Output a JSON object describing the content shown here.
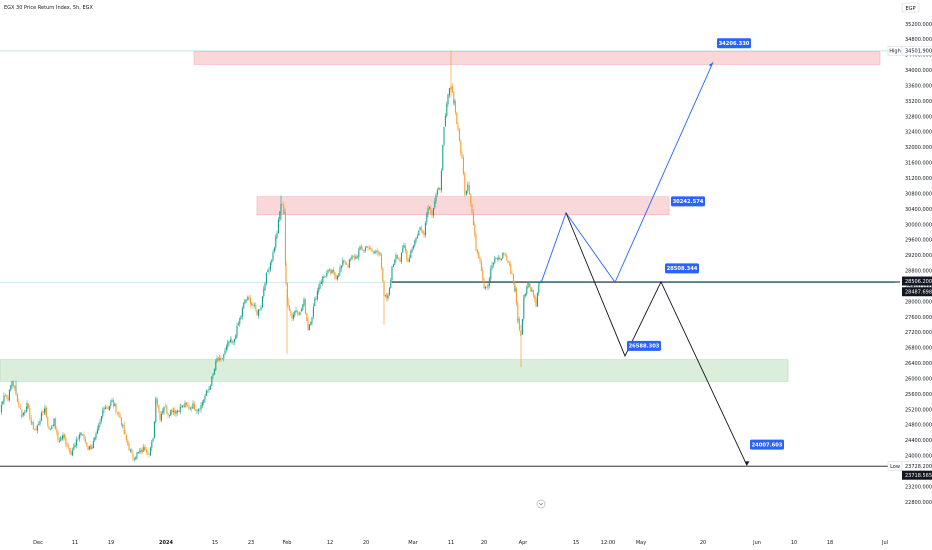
{
  "header": {
    "symbol_title": "EGX 30 Price Return Index, 5h, EGX",
    "currency": "EGP"
  },
  "colors": {
    "up": "#089981",
    "down": "#f7931a",
    "blue": "#2962ff",
    "black": "#131722",
    "supply_zone": "#f8c9cc",
    "demand_zone": "#cde8cf",
    "current_line": "#9fd8d4"
  },
  "chart_data": {
    "type": "candlestick",
    "title": "EGX 30 Price Return Index, 5h, EGX",
    "currency": "EGP",
    "y_axis": {
      "ticks": [
        35200,
        34800,
        34400,
        34000,
        33600,
        33200,
        32800,
        32400,
        32000,
        31600,
        31200,
        30800,
        30400,
        30000,
        29600,
        29200,
        28800,
        28400,
        28000,
        27600,
        27200,
        26800,
        26400,
        26000,
        25600,
        25200,
        24800,
        24400,
        24000,
        23600,
        23200,
        22800
      ],
      "tick_labels": [
        "35200.000",
        "34800.000",
        "34400.000",
        "34000.000",
        "33600.000",
        "33200.000",
        "32800.000",
        "32400.000",
        "32000.000",
        "31600.000",
        "31200.000",
        "30800.000",
        "30400.000",
        "30000.000",
        "29600.000",
        "29200.000",
        "28800.000",
        "28400.000",
        "28000.000",
        "27600.000",
        "27200.000",
        "26800.000",
        "26400.000",
        "26000.000",
        "25600.000",
        "25200.000",
        "24800.000",
        "24400.000",
        "24000.000",
        "23600.000",
        "23200.000",
        "22800.000"
      ],
      "range": [
        22700,
        35500
      ]
    },
    "x_axis": {
      "labels": [
        "Dec",
        "11",
        "19",
        "2024",
        "15",
        "23",
        "Feb",
        "12",
        "20",
        "Mar",
        "11",
        "20",
        "Apr",
        "15",
        "12:00",
        "May",
        "20",
        "Jun",
        "10",
        "18",
        "Jul"
      ]
    },
    "price_labels": [
      {
        "tag": "High",
        "value": "34501.900"
      },
      {
        "tag": "",
        "value": "28506.200"
      },
      {
        "tag": "",
        "value": "28487.698"
      },
      {
        "tag": "Low",
        "value": "23728.200"
      },
      {
        "tag": "",
        "value": "23718.565"
      }
    ],
    "annotations": [
      "34206.330",
      "30242.574",
      "28508.344",
      "26588.303",
      "24007.603"
    ],
    "zones": [
      {
        "type": "supply",
        "from": 34150,
        "to": 34480
      },
      {
        "type": "supply",
        "from": 30250,
        "to": 30720
      },
      {
        "type": "demand",
        "from": 25930,
        "to": 26490
      }
    ],
    "levels": {
      "high": 34501.9,
      "current": 28506.2,
      "low": 23728.2
    },
    "price_path": [
      [
        0,
        25150
      ],
      [
        4,
        25600
      ],
      [
        8,
        25500
      ],
      [
        12,
        25950
      ],
      [
        16,
        25600
      ],
      [
        19,
        25300
      ],
      [
        22,
        25050
      ],
      [
        27,
        25300
      ],
      [
        32,
        24800
      ],
      [
        36,
        24650
      ],
      [
        40,
        24950
      ],
      [
        45,
        25250
      ],
      [
        49,
        24650
      ],
      [
        54,
        24900
      ],
      [
        58,
        24400
      ],
      [
        63,
        24500
      ],
      [
        67,
        24300
      ],
      [
        71,
        24100
      ],
      [
        75,
        24250
      ],
      [
        80,
        24600
      ],
      [
        84,
        24450
      ],
      [
        88,
        24200
      ],
      [
        92,
        24250
      ],
      [
        96,
        24500
      ],
      [
        100,
        24850
      ],
      [
        104,
        25300
      ],
      [
        108,
        25250
      ],
      [
        112,
        25400
      ],
      [
        116,
        25200
      ],
      [
        120,
        25000
      ],
      [
        125,
        24500
      ],
      [
        129,
        24200
      ],
      [
        133,
        23950
      ],
      [
        137,
        24050
      ],
      [
        141,
        24100
      ],
      [
        145,
        24200
      ],
      [
        149,
        24100
      ],
      [
        153,
        24400
      ],
      [
        156,
        25550
      ],
      [
        160,
        25000
      ],
      [
        164,
        25300
      ],
      [
        168,
        25100
      ],
      [
        172,
        25200
      ],
      [
        176,
        25150
      ],
      [
        181,
        25250
      ],
      [
        185,
        25300
      ],
      [
        189,
        25250
      ],
      [
        193,
        25300
      ],
      [
        197,
        25200
      ],
      [
        201,
        25300
      ],
      [
        205,
        25550
      ],
      [
        209,
        25750
      ],
      [
        213,
        26100
      ],
      [
        217,
        26500
      ],
      [
        221,
        26450
      ],
      [
        225,
        26700
      ],
      [
        229,
        26950
      ],
      [
        233,
        26900
      ],
      [
        237,
        27300
      ],
      [
        241,
        27650
      ],
      [
        245,
        28050
      ],
      [
        249,
        28050
      ],
      [
        253,
        27900
      ],
      [
        257,
        27700
      ],
      [
        261,
        27900
      ],
      [
        265,
        28550
      ],
      [
        269,
        28900
      ],
      [
        273,
        29250
      ],
      [
        277,
        29800
      ],
      [
        281,
        30550
      ],
      [
        284,
        30350
      ],
      [
        286,
        28400
      ],
      [
        288,
        27950
      ],
      [
        292,
        27600
      ],
      [
        296,
        27800
      ],
      [
        300,
        27700
      ],
      [
        304,
        28000
      ],
      [
        308,
        27300
      ],
      [
        312,
        27650
      ],
      [
        316,
        28150
      ],
      [
        320,
        28500
      ],
      [
        324,
        28650
      ],
      [
        328,
        28750
      ],
      [
        332,
        28750
      ],
      [
        336,
        28650
      ],
      [
        340,
        28850
      ],
      [
        344,
        29050
      ],
      [
        348,
        28950
      ],
      [
        352,
        29150
      ],
      [
        356,
        29150
      ],
      [
        360,
        29350
      ],
      [
        364,
        29350
      ],
      [
        368,
        29450
      ],
      [
        372,
        29250
      ],
      [
        376,
        29300
      ],
      [
        380,
        29300
      ],
      [
        384,
        28100
      ],
      [
        388,
        28100
      ],
      [
        392,
        28850
      ],
      [
        396,
        29250
      ],
      [
        400,
        29050
      ],
      [
        404,
        29450
      ],
      [
        408,
        29050
      ],
      [
        412,
        29400
      ],
      [
        416,
        29650
      ],
      [
        420,
        29900
      ],
      [
        424,
        29800
      ],
      [
        428,
        30500
      ],
      [
        432,
        30300
      ],
      [
        436,
        30750
      ],
      [
        440,
        30950
      ],
      [
        444,
        32450
      ],
      [
        448,
        33350
      ],
      [
        451,
        33600
      ],
      [
        454,
        33200
      ],
      [
        458,
        32400
      ],
      [
        462,
        31700
      ],
      [
        465,
        30800
      ],
      [
        468,
        31100
      ],
      [
        472,
        30300
      ],
      [
        476,
        29400
      ],
      [
        480,
        29100
      ],
      [
        484,
        28400
      ],
      [
        488,
        28450
      ],
      [
        492,
        28950
      ],
      [
        496,
        29100
      ],
      [
        500,
        29100
      ],
      [
        504,
        29250
      ],
      [
        508,
        29000
      ],
      [
        512,
        28700
      ],
      [
        515,
        28300
      ],
      [
        518,
        27500
      ],
      [
        521,
        27100
      ],
      [
        524,
        28200
      ],
      [
        528,
        28450
      ],
      [
        532,
        28300
      ],
      [
        536,
        27950
      ],
      [
        539,
        28450
      ],
      [
        541,
        28480
      ]
    ],
    "projection_blue": [
      [
        541,
        28480
      ],
      [
        566,
        30300
      ],
      [
        615,
        28500
      ],
      [
        713,
        34206
      ]
    ],
    "projection_black": [
      [
        566,
        30300
      ],
      [
        625,
        26588
      ],
      [
        661,
        28508
      ],
      [
        747,
        23750
      ]
    ]
  }
}
